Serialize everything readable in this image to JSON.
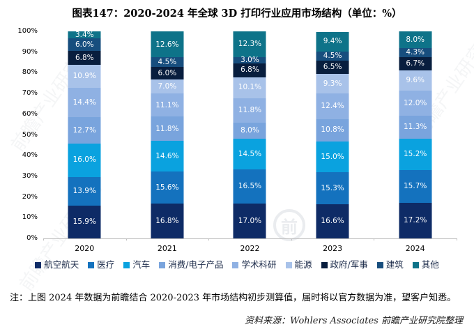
{
  "title": "图表147：2020-2024 年全球 3D 打印行业应用市场结构（单位：%）",
  "chart_data": {
    "type": "bar",
    "stacked": true,
    "title": "图表147：2020-2024 年全球 3D 打印行业应用市场结构（单位：%）",
    "categories": [
      "2020",
      "2021",
      "2022",
      "2023",
      "2024"
    ],
    "series": [
      {
        "name": "航空航天",
        "color": "#0E2B66",
        "values": [
          15.9,
          16.8,
          17.0,
          16.6,
          17.2
        ]
      },
      {
        "name": "医疗",
        "color": "#1472BE",
        "values": [
          13.9,
          15.6,
          16.5,
          15.3,
          15.7
        ]
      },
      {
        "name": "汽车",
        "color": "#0AA2DF",
        "values": [
          16.0,
          14.6,
          14.5,
          15.0,
          15.2
        ]
      },
      {
        "name": "消费/电子产品",
        "color": "#79A4DD",
        "values": [
          12.7,
          11.8,
          8.0,
          10.8,
          11.3
        ]
      },
      {
        "name": "学术科研",
        "color": "#8FB1E3",
        "values": [
          14.4,
          11.1,
          11.8,
          12.4,
          12.0
        ]
      },
      {
        "name": "能源",
        "color": "#A8C2E9",
        "values": [
          10.9,
          7.0,
          10.1,
          9.3,
          9.6
        ]
      },
      {
        "name": "政府/军事",
        "color": "#081E3E",
        "values": [
          6.8,
          6.0,
          6.8,
          6.5,
          6.7
        ]
      },
      {
        "name": "建筑",
        "color": "#174E7E",
        "values": [
          6.0,
          4.5,
          3.0,
          4.5,
          4.3
        ]
      },
      {
        "name": "其他",
        "color": "#0E7389",
        "values": [
          3.4,
          12.6,
          12.3,
          9.4,
          8.0
        ]
      }
    ],
    "ylim": [
      0,
      100
    ],
    "y_ticks": [
      "100%",
      "90%",
      "80%",
      "70%",
      "60%",
      "50%",
      "40%",
      "30%",
      "20%",
      "10%",
      "0%"
    ],
    "grid": false,
    "legend_position": "bottom",
    "label_format": "percent-one-decimal",
    "label_color": "#ffffff"
  },
  "note": "注：上图 2024 年数据为前瞻结合 2020-2023 年市场结构初步测算值，届时将以官方数据为准，望客户知悉。",
  "source": "资料来源：Wohlers Associates  前瞻产业研究院整理",
  "watermark": {
    "text": "前瞻产业研究院",
    "logo_char": "前"
  }
}
